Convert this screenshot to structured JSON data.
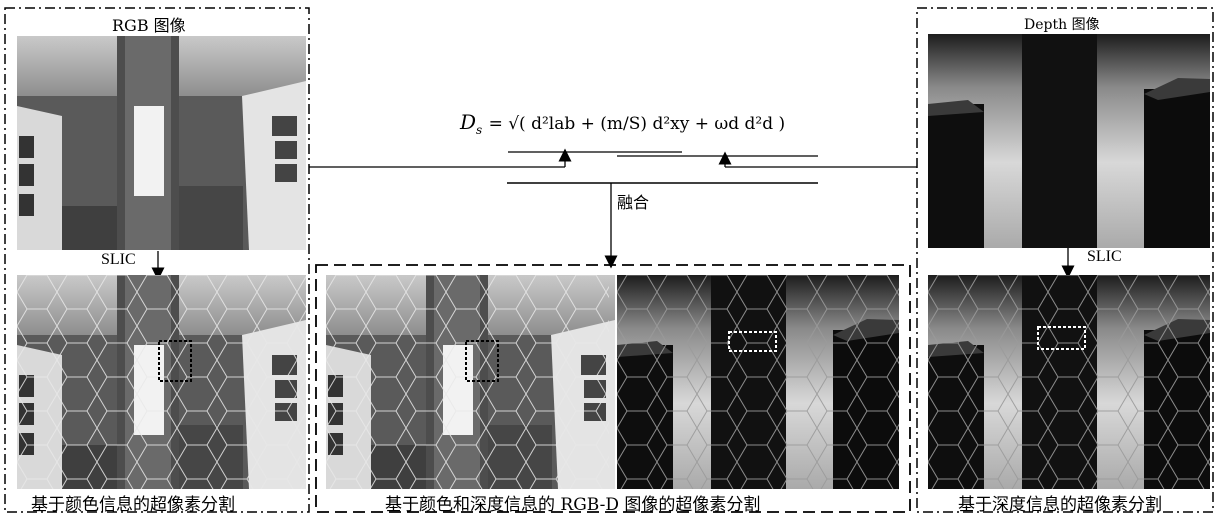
{
  "left_panel": {
    "title": "RGB 图像",
    "op": "SLIC",
    "caption": "基于颜色信息的超像素分割"
  },
  "right_panel": {
    "title": "Depth 图像",
    "op": "SLIC",
    "caption": "基于深度信息的超像素分割"
  },
  "center": {
    "formula_lhs": "D",
    "formula_lhs_sub": "s",
    "formula_rhs": "= √( d²lab + (m/S) d²xy + ωd d²d )",
    "fusion_label": "融合",
    "caption": "基于颜色和深度信息的 RGB-D 图像的超像素分割"
  }
}
